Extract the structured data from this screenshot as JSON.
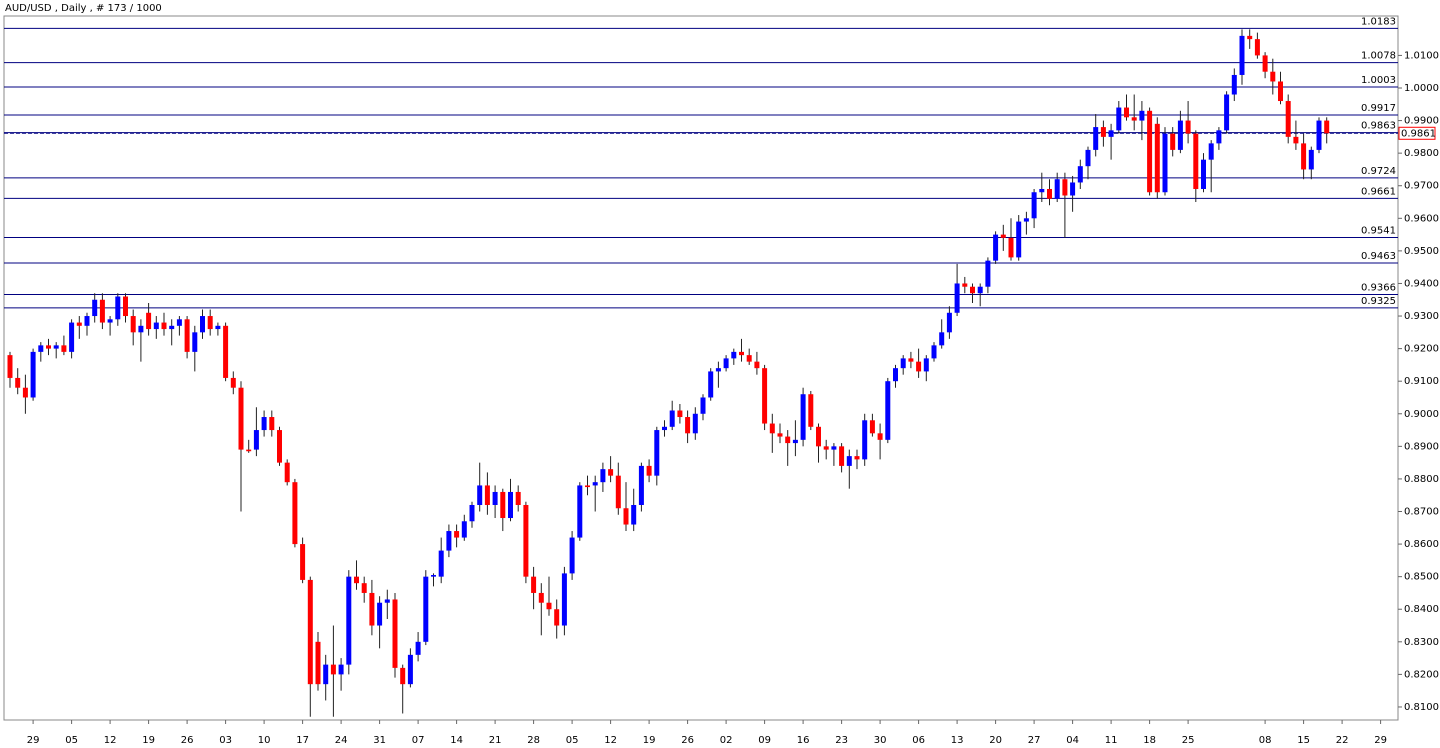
{
  "chart_data": {
    "type": "candlestick",
    "title": "AUD/USD , Daily , # 173 / 1000",
    "up_color": "#0000ff",
    "down_color": "#ff0000",
    "wick_color": "#222222",
    "level_color": "#000080",
    "ylim": [
      0.806,
      1.0221
    ],
    "yticks": [
      {
        "value": 0.81,
        "label": "0.8100"
      },
      {
        "value": 0.82,
        "label": "0.8200"
      },
      {
        "value": 0.83,
        "label": "0.8300"
      },
      {
        "value": 0.84,
        "label": "0.8400"
      },
      {
        "value": 0.85,
        "label": "0.8500"
      },
      {
        "value": 0.86,
        "label": "0.8600"
      },
      {
        "value": 0.87,
        "label": "0.8700"
      },
      {
        "value": 0.88,
        "label": "0.8800"
      },
      {
        "value": 0.89,
        "label": "0.8900"
      },
      {
        "value": 0.9,
        "label": "0.9000"
      },
      {
        "value": 0.91,
        "label": "0.9100"
      },
      {
        "value": 0.92,
        "label": "0.9200"
      },
      {
        "value": 0.93,
        "label": "0.9300"
      },
      {
        "value": 0.94,
        "label": "0.9400"
      },
      {
        "value": 0.95,
        "label": "0.9500"
      },
      {
        "value": 0.96,
        "label": "0.9600"
      },
      {
        "value": 0.97,
        "label": "0.9700"
      },
      {
        "value": 0.98,
        "label": "0.9800"
      },
      {
        "value": 0.99,
        "label": "0.9900"
      },
      {
        "value": 1,
        "label": "1.0000"
      },
      {
        "value": 1.01,
        "label": "1.0100"
      }
    ],
    "levels": [
      1.0183,
      1.0078,
      1.0003,
      0.9917,
      0.9863,
      0.9724,
      0.9661,
      0.9541,
      0.9463,
      0.9366,
      0.9325
    ],
    "current_price": 0.9861,
    "xticks": [
      "29",
      "05",
      "12",
      "19",
      "26",
      "03",
      "10",
      "17",
      "24",
      "31",
      "07",
      "14",
      "21",
      "28",
      "05",
      "12",
      "19",
      "26",
      "02",
      "09",
      "16",
      "23",
      "30",
      "06",
      "13",
      "20",
      "27",
      "04",
      "11",
      "18",
      "25",
      null,
      "08",
      "15",
      "22",
      "29"
    ],
    "ohlc": [
      [
        0.918,
        0.919,
        0.908,
        0.911
      ],
      [
        0.911,
        0.914,
        0.906,
        0.908
      ],
      [
        0.908,
        0.912,
        0.9,
        0.905
      ],
      [
        0.905,
        0.92,
        0.904,
        0.919
      ],
      [
        0.919,
        0.922,
        0.916,
        0.921
      ],
      [
        0.921,
        0.923,
        0.918,
        0.92
      ],
      [
        0.92,
        0.922,
        0.917,
        0.921
      ],
      [
        0.921,
        0.924,
        0.918,
        0.919
      ],
      [
        0.919,
        0.929,
        0.917,
        0.928
      ],
      [
        0.928,
        0.93,
        0.923,
        0.927
      ],
      [
        0.927,
        0.931,
        0.924,
        0.93
      ],
      [
        0.93,
        0.937,
        0.928,
        0.935
      ],
      [
        0.935,
        0.937,
        0.926,
        0.928
      ],
      [
        0.928,
        0.93,
        0.924,
        0.929
      ],
      [
        0.929,
        0.937,
        0.927,
        0.936
      ],
      [
        0.936,
        0.937,
        0.928,
        0.93
      ],
      [
        0.93,
        0.932,
        0.921,
        0.925
      ],
      [
        0.925,
        0.929,
        0.916,
        0.927
      ],
      [
        0.931,
        0.934,
        0.924,
        0.926
      ],
      [
        0.926,
        0.93,
        0.923,
        0.928
      ],
      [
        0.928,
        0.931,
        0.924,
        0.926
      ],
      [
        0.926,
        0.929,
        0.921,
        0.927
      ],
      [
        0.927,
        0.93,
        0.924,
        0.929
      ],
      [
        0.929,
        0.93,
        0.917,
        0.919
      ],
      [
        0.919,
        0.927,
        0.913,
        0.925
      ],
      [
        0.925,
        0.932,
        0.923,
        0.93
      ],
      [
        0.93,
        0.932,
        0.924,
        0.926
      ],
      [
        0.926,
        0.928,
        0.924,
        0.927
      ],
      [
        0.927,
        0.928,
        0.91,
        0.911
      ],
      [
        0.911,
        0.913,
        0.906,
        0.908
      ],
      [
        0.908,
        0.91,
        0.87,
        0.889
      ],
      [
        0.889,
        0.892,
        0.888,
        0.8885
      ],
      [
        0.889,
        0.902,
        0.887,
        0.895
      ],
      [
        0.895,
        0.901,
        0.893,
        0.899
      ],
      [
        0.899,
        0.901,
        0.893,
        0.895
      ],
      [
        0.895,
        0.896,
        0.884,
        0.885
      ],
      [
        0.885,
        0.886,
        0.878,
        0.879
      ],
      [
        0.879,
        0.88,
        0.859,
        0.86
      ],
      [
        0.86,
        0.862,
        0.848,
        0.849
      ],
      [
        0.849,
        0.85,
        0.807,
        0.817
      ],
      [
        0.83,
        0.833,
        0.815,
        0.817
      ],
      [
        0.817,
        0.826,
        0.812,
        0.823
      ],
      [
        0.823,
        0.835,
        0.807,
        0.82
      ],
      [
        0.82,
        0.825,
        0.815,
        0.823
      ],
      [
        0.823,
        0.852,
        0.82,
        0.85
      ],
      [
        0.85,
        0.855,
        0.846,
        0.848
      ],
      [
        0.848,
        0.85,
        0.842,
        0.845
      ],
      [
        0.845,
        0.849,
        0.832,
        0.835
      ],
      [
        0.835,
        0.844,
        0.828,
        0.842
      ],
      [
        0.842,
        0.846,
        0.837,
        0.843
      ],
      [
        0.843,
        0.845,
        0.819,
        0.822
      ],
      [
        0.822,
        0.823,
        0.808,
        0.817
      ],
      [
        0.817,
        0.828,
        0.816,
        0.826
      ],
      [
        0.826,
        0.833,
        0.824,
        0.83
      ],
      [
        0.83,
        0.852,
        0.829,
        0.85
      ],
      [
        0.85,
        0.851,
        0.847,
        0.8505
      ],
      [
        0.85,
        0.862,
        0.848,
        0.858
      ],
      [
        0.858,
        0.866,
        0.856,
        0.864
      ],
      [
        0.864,
        0.866,
        0.859,
        0.862
      ],
      [
        0.862,
        0.869,
        0.861,
        0.867
      ],
      [
        0.867,
        0.873,
        0.865,
        0.872
      ],
      [
        0.872,
        0.885,
        0.87,
        0.878
      ],
      [
        0.878,
        0.882,
        0.869,
        0.872
      ],
      [
        0.872,
        0.878,
        0.868,
        0.876
      ],
      [
        0.876,
        0.877,
        0.864,
        0.868
      ],
      [
        0.868,
        0.88,
        0.867,
        0.876
      ],
      [
        0.876,
        0.878,
        0.87,
        0.872
      ],
      [
        0.872,
        0.873,
        0.848,
        0.85
      ],
      [
        0.85,
        0.853,
        0.84,
        0.845
      ],
      [
        0.845,
        0.848,
        0.832,
        0.842
      ],
      [
        0.842,
        0.85,
        0.838,
        0.84
      ],
      [
        0.84,
        0.843,
        0.831,
        0.835
      ],
      [
        0.835,
        0.853,
        0.832,
        0.851
      ],
      [
        0.851,
        0.864,
        0.849,
        0.862
      ],
      [
        0.862,
        0.879,
        0.861,
        0.878
      ],
      [
        0.878,
        0.881,
        0.875,
        0.8775
      ],
      [
        0.878,
        0.881,
        0.87,
        0.879
      ],
      [
        0.879,
        0.885,
        0.876,
        0.883
      ],
      [
        0.883,
        0.887,
        0.879,
        0.881
      ],
      [
        0.881,
        0.885,
        0.869,
        0.871
      ],
      [
        0.871,
        0.879,
        0.864,
        0.866
      ],
      [
        0.866,
        0.877,
        0.864,
        0.872
      ],
      [
        0.872,
        0.885,
        0.87,
        0.884
      ],
      [
        0.884,
        0.886,
        0.879,
        0.881
      ],
      [
        0.881,
        0.896,
        0.878,
        0.895
      ],
      [
        0.895,
        0.898,
        0.893,
        0.896
      ],
      [
        0.896,
        0.904,
        0.895,
        0.901
      ],
      [
        0.901,
        0.903,
        0.897,
        0.899
      ],
      [
        0.899,
        0.901,
        0.891,
        0.894
      ],
      [
        0.894,
        0.902,
        0.892,
        0.9
      ],
      [
        0.9,
        0.906,
        0.898,
        0.905
      ],
      [
        0.905,
        0.914,
        0.904,
        0.913
      ],
      [
        0.913,
        0.916,
        0.908,
        0.914
      ],
      [
        0.914,
        0.918,
        0.913,
        0.917
      ],
      [
        0.917,
        0.92,
        0.915,
        0.919
      ],
      [
        0.919,
        0.923,
        0.916,
        0.918
      ],
      [
        0.918,
        0.92,
        0.915,
        0.916
      ],
      [
        0.916,
        0.919,
        0.912,
        0.914
      ],
      [
        0.914,
        0.915,
        0.895,
        0.897
      ],
      [
        0.897,
        0.9,
        0.888,
        0.894
      ],
      [
        0.894,
        0.897,
        0.891,
        0.893
      ],
      [
        0.893,
        0.895,
        0.884,
        0.891
      ],
      [
        0.891,
        0.898,
        0.887,
        0.892
      ],
      [
        0.892,
        0.908,
        0.89,
        0.906
      ],
      [
        0.906,
        0.907,
        0.895,
        0.896
      ],
      [
        0.896,
        0.897,
        0.885,
        0.89
      ],
      [
        0.89,
        0.892,
        0.886,
        0.889
      ],
      [
        0.889,
        0.891,
        0.884,
        0.89
      ],
      [
        0.89,
        0.891,
        0.882,
        0.884
      ],
      [
        0.884,
        0.889,
        0.877,
        0.887
      ],
      [
        0.887,
        0.889,
        0.883,
        0.886
      ],
      [
        0.886,
        0.9,
        0.884,
        0.898
      ],
      [
        0.898,
        0.9,
        0.893,
        0.894
      ],
      [
        0.894,
        0.897,
        0.886,
        0.892
      ],
      [
        0.892,
        0.911,
        0.891,
        0.91
      ],
      [
        0.91,
        0.915,
        0.908,
        0.914
      ],
      [
        0.914,
        0.918,
        0.912,
        0.917
      ],
      [
        0.917,
        0.919,
        0.914,
        0.916
      ],
      [
        0.916,
        0.92,
        0.911,
        0.913
      ],
      [
        0.913,
        0.918,
        0.91,
        0.917
      ],
      [
        0.917,
        0.922,
        0.916,
        0.921
      ],
      [
        0.921,
        0.929,
        0.92,
        0.925
      ],
      [
        0.925,
        0.933,
        0.923,
        0.931
      ],
      [
        0.931,
        0.946,
        0.93,
        0.94
      ],
      [
        0.94,
        0.942,
        0.937,
        0.939
      ],
      [
        0.939,
        0.94,
        0.934,
        0.937
      ],
      [
        0.937,
        0.94,
        0.933,
        0.939
      ],
      [
        0.939,
        0.948,
        0.937,
        0.947
      ],
      [
        0.947,
        0.956,
        0.946,
        0.955
      ],
      [
        0.955,
        0.958,
        0.95,
        0.954
      ],
      [
        0.954,
        0.96,
        0.947,
        0.948
      ],
      [
        0.948,
        0.961,
        0.947,
        0.959
      ],
      [
        0.959,
        0.962,
        0.955,
        0.96
      ],
      [
        0.96,
        0.969,
        0.957,
        0.968
      ],
      [
        0.968,
        0.974,
        0.965,
        0.969
      ],
      [
        0.969,
        0.972,
        0.964,
        0.966
      ],
      [
        0.966,
        0.974,
        0.965,
        0.972
      ],
      [
        0.972,
        0.974,
        0.954,
        0.967
      ],
      [
        0.967,
        0.973,
        0.962,
        0.971
      ],
      [
        0.971,
        0.978,
        0.969,
        0.976
      ],
      [
        0.976,
        0.982,
        0.972,
        0.981
      ],
      [
        0.981,
        0.992,
        0.979,
        0.988
      ],
      [
        0.988,
        0.99,
        0.982,
        0.985
      ],
      [
        0.985,
        0.989,
        0.978,
        0.987
      ],
      [
        0.987,
        0.996,
        0.986,
        0.994
      ],
      [
        0.994,
        0.998,
        0.99,
        0.991
      ],
      [
        0.991,
        0.998,
        0.987,
        0.99
      ],
      [
        0.99,
        0.996,
        0.984,
        0.993
      ],
      [
        0.993,
        0.994,
        0.967,
        0.968
      ],
      [
        0.989,
        0.991,
        0.966,
        0.968
      ],
      [
        0.968,
        0.988,
        0.967,
        0.986
      ],
      [
        0.986,
        0.988,
        0.979,
        0.981
      ],
      [
        0.981,
        0.993,
        0.98,
        0.99
      ],
      [
        0.99,
        0.996,
        0.983,
        0.986
      ],
      [
        0.986,
        0.987,
        0.965,
        0.969
      ],
      [
        0.969,
        0.98,
        0.968,
        0.978
      ],
      [
        0.978,
        0.984,
        0.968,
        0.983
      ],
      [
        0.983,
        0.988,
        0.981,
        0.987
      ],
      [
        0.987,
        0.999,
        0.986,
        0.998
      ],
      [
        0.998,
        1.006,
        0.996,
        1.004
      ],
      [
        1.004,
        1.018,
        1.001,
        1.016
      ],
      [
        1.016,
        1.018,
        1.012,
        1.015
      ],
      [
        1.015,
        1.017,
        1.009,
        1.01
      ],
      [
        1.01,
        1.011,
        1.003,
        1.005
      ],
      [
        1.005,
        1.009,
        0.998,
        1.002
      ],
      [
        1.002,
        1.005,
        0.995,
        0.996
      ],
      [
        0.996,
        0.998,
        0.983,
        0.985
      ],
      [
        0.985,
        0.99,
        0.981,
        0.983
      ],
      [
        0.983,
        0.986,
        0.972,
        0.975
      ],
      [
        0.975,
        0.982,
        0.972,
        0.981
      ],
      [
        0.981,
        0.991,
        0.98,
        0.99
      ],
      [
        0.99,
        0.991,
        0.983,
        0.9861
      ]
    ]
  }
}
